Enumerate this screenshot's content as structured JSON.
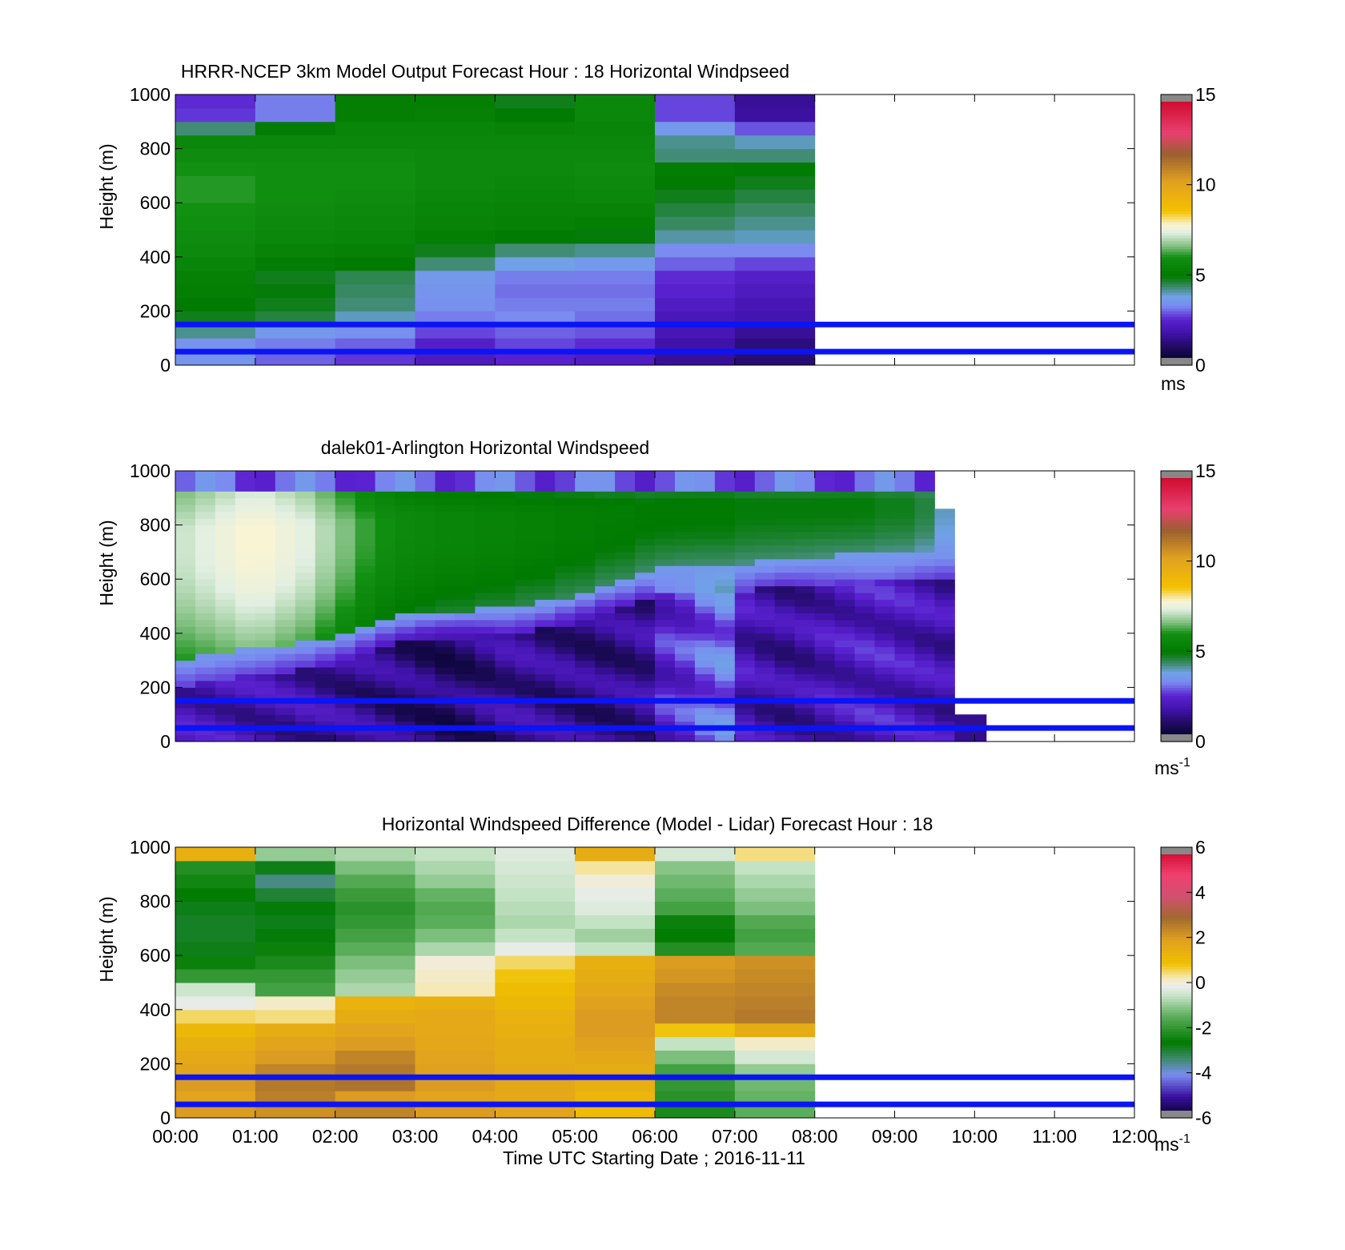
{
  "figure": {
    "xaxis": {
      "label": "Time UTC  Starting Date ; 2016-11-11",
      "tick_labels": [
        "00:00",
        "01:00",
        "02:00",
        "03:00",
        "04:00",
        "05:00",
        "06:00",
        "07:00",
        "08:00",
        "09:00",
        "10:00",
        "11:00",
        "12:00"
      ]
    },
    "yaxis": {
      "label": "Height (m)",
      "tick_labels": [
        "0",
        "200",
        "400",
        "600",
        "800",
        "1000"
      ]
    }
  },
  "chart_data": [
    {
      "type": "heatmap",
      "title": "HRRR-NCEP 3km Model Output   Forecast Hour : 18 Horizontal Windpseed",
      "ylabel": "Height (m)",
      "xlim": [
        0,
        12
      ],
      "ylim": [
        0,
        1000
      ],
      "x_hours": [
        0,
        1,
        2,
        3,
        4,
        5,
        6,
        7
      ],
      "y_levels_m": [
        25,
        75,
        125,
        175,
        225,
        275,
        325,
        375,
        425,
        475,
        525,
        575,
        625,
        675,
        725,
        775,
        825,
        875,
        925,
        975
      ],
      "values": [
        [
          3.5,
          3.0,
          2.7,
          2.2,
          2.5,
          2.3,
          1.6,
          1.2
        ],
        [
          3.5,
          3.2,
          3.0,
          2.4,
          2.8,
          2.6,
          1.8,
          1.3
        ],
        [
          4.2,
          3.6,
          3.4,
          2.8,
          3.0,
          2.9,
          2.0,
          1.6
        ],
        [
          4.8,
          4.6,
          4.0,
          3.2,
          3.3,
          3.1,
          2.1,
          1.9
        ],
        [
          5.0,
          4.8,
          4.3,
          3.4,
          3.2,
          3.2,
          2.3,
          2.0
        ],
        [
          5.2,
          4.9,
          4.4,
          3.5,
          3.1,
          3.1,
          2.5,
          2.2
        ],
        [
          5.3,
          4.8,
          4.5,
          3.6,
          3.2,
          3.2,
          2.6,
          2.4
        ],
        [
          5.5,
          5.1,
          5.0,
          4.3,
          3.8,
          3.6,
          3.0,
          2.8
        ],
        [
          5.7,
          5.4,
          5.3,
          4.8,
          4.3,
          4.2,
          3.3,
          3.3
        ],
        [
          5.8,
          5.6,
          5.5,
          5.2,
          5.0,
          4.9,
          4.1,
          4.0
        ],
        [
          5.9,
          5.7,
          5.6,
          5.4,
          5.3,
          5.2,
          4.4,
          4.2
        ],
        [
          6.0,
          5.8,
          5.7,
          5.5,
          5.4,
          5.4,
          4.6,
          4.4
        ],
        [
          6.1,
          5.9,
          5.8,
          5.6,
          5.5,
          5.6,
          4.8,
          4.6
        ],
        [
          6.1,
          5.9,
          5.9,
          5.7,
          5.6,
          5.7,
          5.0,
          4.8
        ],
        [
          6.0,
          5.9,
          5.9,
          5.7,
          5.7,
          5.8,
          5.1,
          5.0
        ],
        [
          5.8,
          5.8,
          5.8,
          5.7,
          5.7,
          5.7,
          4.3,
          4.3
        ],
        [
          5.6,
          5.6,
          5.6,
          5.6,
          5.6,
          5.6,
          4.2,
          4.0
        ],
        [
          4.3,
          5.1,
          5.5,
          5.5,
          5.4,
          5.5,
          3.6,
          2.9
        ],
        [
          2.7,
          3.2,
          5.2,
          5.3,
          5.0,
          5.6,
          2.8,
          1.7
        ],
        [
          2.6,
          3.2,
          5.2,
          5.2,
          4.8,
          5.6,
          2.8,
          1.6
        ]
      ],
      "colorbar": {
        "label": "ms",
        "tick_labels": [
          "0",
          "5",
          "10",
          "15"
        ],
        "range": [
          0,
          15
        ]
      },
      "reference_lines_m": [
        150,
        50
      ]
    },
    {
      "type": "heatmap",
      "title": "dalek01-Arlington  Horizontal Windspeed",
      "ylabel": "Height (m)",
      "xlim": [
        0,
        12
      ],
      "ylim": [
        0,
        1000
      ],
      "x_hours": [
        0.0,
        0.25,
        0.5,
        0.75,
        1.0,
        1.25,
        1.5,
        1.75,
        2.0,
        2.25,
        2.5,
        2.75,
        3.0,
        3.25,
        3.5,
        3.75,
        4.0,
        4.25,
        4.5,
        4.75,
        5.0,
        5.25,
        5.5,
        5.75,
        6.0,
        6.25,
        6.5,
        6.75,
        7.0,
        7.25,
        7.5,
        7.75,
        8.0,
        8.25,
        8.5,
        8.75,
        9.0,
        9.25,
        9.5
      ],
      "boundary_height_m": [
        270,
        285,
        295,
        300,
        310,
        320,
        330,
        345,
        360,
        385,
        410,
        425,
        435,
        440,
        445,
        450,
        455,
        465,
        475,
        495,
        510,
        535,
        555,
        580,
        605,
        615,
        620,
        620,
        620,
        625,
        630,
        635,
        645,
        650,
        655,
        655,
        660,
        665,
        665
      ],
      "top_height_m": [
        1000,
        1000,
        1000,
        1000,
        1000,
        1000,
        1000,
        1000,
        1000,
        1000,
        1000,
        1000,
        1000,
        1000,
        1000,
        1000,
        1000,
        1000,
        1000,
        1000,
        1000,
        1000,
        1000,
        1000,
        1000,
        1000,
        1000,
        1000,
        1000,
        1000,
        1000,
        1000,
        1000,
        1000,
        1000,
        1000,
        1000,
        1000,
        860
      ],
      "core_speed": [
        7.2,
        7.4,
        7.6,
        7.8,
        7.8,
        7.6,
        7.4,
        7.0,
        6.6,
        6.2,
        5.9,
        5.7,
        5.6,
        5.5,
        5.5,
        5.4,
        5.4,
        5.3,
        5.3,
        5.2,
        5.2,
        5.1,
        5.1,
        5.0,
        5.0,
        5.0,
        5.0,
        5.0,
        4.9,
        4.9,
        4.9,
        4.9,
        4.9,
        4.9,
        4.9,
        4.8,
        4.8,
        4.6,
        4.0
      ],
      "low_speed": [
        2.0,
        2.0,
        2.0,
        1.9,
        1.9,
        1.8,
        1.8,
        1.7,
        1.6,
        1.5,
        1.4,
        1.3,
        1.2,
        1.1,
        1.2,
        1.4,
        1.6,
        1.6,
        1.5,
        1.5,
        1.4,
        1.4,
        1.5,
        1.6,
        2.4,
        2.6,
        3.0,
        3.2,
        2.0,
        1.8,
        1.7,
        1.8,
        2.0,
        2.1,
        2.2,
        2.2,
        2.1,
        2.0,
        1.9
      ],
      "extra_segment": {
        "x_hours": [
          9.75,
          10.15
        ],
        "height_m": [
          0,
          100
        ],
        "speed": 1.5
      },
      "colorbar": {
        "label": "ms-1",
        "tick_labels": [
          "0",
          "5",
          "10",
          "15"
        ],
        "range": [
          0,
          15
        ]
      },
      "reference_lines_m": [
        150,
        50
      ]
    },
    {
      "type": "heatmap",
      "title": "Horizontal Windspeed Difference (Model - Lidar) Forecast Hour : 18",
      "ylabel": "Height (m)",
      "xlabel": "Time UTC  Starting Date ; 2016-11-11",
      "xlim": [
        0,
        12
      ],
      "ylim": [
        0,
        1000
      ],
      "x_hours": [
        0,
        1,
        2,
        3,
        4,
        5,
        6,
        7
      ],
      "y_levels_m": [
        25,
        75,
        125,
        175,
        225,
        275,
        325,
        375,
        425,
        475,
        525,
        575,
        625,
        675,
        725,
        775,
        825,
        875,
        925,
        975
      ],
      "values": [
        [
          2.0,
          2.2,
          2.4,
          2.0,
          1.8,
          1.0,
          -2.3,
          -1.5
        ],
        [
          1.8,
          2.5,
          2.0,
          1.8,
          1.6,
          1.2,
          -2.1,
          -1.4
        ],
        [
          2.0,
          2.6,
          2.7,
          2.0,
          1.7,
          1.4,
          -2.0,
          -1.3
        ],
        [
          1.8,
          2.4,
          2.6,
          1.9,
          1.6,
          1.5,
          -1.8,
          -1.0
        ],
        [
          1.6,
          2.0,
          2.4,
          1.8,
          1.5,
          1.7,
          -1.2,
          -0.4
        ],
        [
          1.4,
          1.8,
          2.0,
          1.7,
          1.5,
          1.9,
          -0.6,
          0.1
        ],
        [
          1.1,
          1.5,
          1.8,
          1.6,
          1.4,
          2.0,
          0.8,
          1.5
        ],
        [
          0.5,
          0.4,
          1.5,
          1.6,
          1.3,
          2.0,
          2.4,
          2.6
        ],
        [
          -0.2,
          0.1,
          1.3,
          1.4,
          1.1,
          1.9,
          2.4,
          2.5
        ],
        [
          -0.5,
          -1.8,
          -0.8,
          0.2,
          1.0,
          1.7,
          2.3,
          2.4
        ],
        [
          -2.0,
          -2.0,
          -1.0,
          0.1,
          0.8,
          1.5,
          2.1,
          2.3
        ],
        [
          -2.5,
          -2.3,
          -1.2,
          0.0,
          0.5,
          1.4,
          2.0,
          2.2
        ],
        [
          -2.8,
          -2.5,
          -1.5,
          -0.8,
          -0.2,
          -0.6,
          -2.2,
          -1.6
        ],
        [
          -2.9,
          -2.7,
          -1.8,
          -1.2,
          -0.6,
          -0.9,
          -2.6,
          -1.8
        ],
        [
          -2.9,
          -2.8,
          -2.0,
          -1.5,
          -0.8,
          -0.6,
          -2.5,
          -1.6
        ],
        [
          -2.8,
          -2.7,
          -2.1,
          -1.6,
          -0.7,
          -0.3,
          -1.8,
          -1.2
        ],
        [
          -2.6,
          -3.0,
          -1.9,
          -1.4,
          -0.6,
          -0.2,
          -1.5,
          -1.0
        ],
        [
          -2.4,
          -3.5,
          -1.6,
          -1.0,
          -0.5,
          0.0,
          -1.3,
          -0.8
        ],
        [
          -2.2,
          -2.8,
          -1.2,
          -0.8,
          -0.4,
          0.3,
          -1.1,
          -0.6
        ],
        [
          1.4,
          -1.0,
          -0.8,
          -0.6,
          -0.3,
          1.5,
          -0.4,
          0.4
        ]
      ],
      "colorbar": {
        "label": "ms-1",
        "tick_labels": [
          "-6",
          "-4",
          "-2",
          "0",
          "2",
          "4",
          "6"
        ],
        "range": [
          -6,
          6
        ]
      },
      "reference_lines_m": [
        150,
        50
      ]
    }
  ]
}
